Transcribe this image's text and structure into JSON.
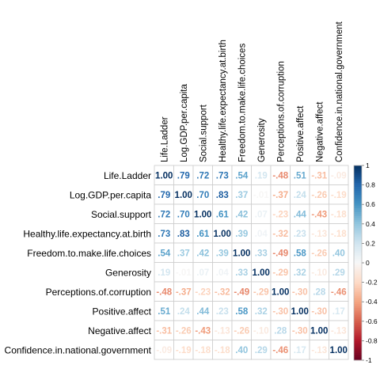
{
  "chart_data": {
    "type": "heatmap",
    "variables": [
      "Life.Ladder",
      "Log.GDP.per.capita",
      "Social.support",
      "Healthy.life.expectancy.at.birth",
      "Freedom.to.make.life.choices",
      "Generosity",
      "Perceptions.of.corruption",
      "Positive.affect",
      "Negative.affect",
      "Confidence.in.national.government"
    ],
    "matrix": [
      [
        1.0,
        0.79,
        0.72,
        0.73,
        0.54,
        0.19,
        -0.48,
        0.51,
        -0.31,
        -0.09
      ],
      [
        0.79,
        1.0,
        0.7,
        0.83,
        0.37,
        -0.01,
        -0.37,
        0.24,
        -0.26,
        -0.19
      ],
      [
        0.72,
        0.7,
        1.0,
        0.61,
        0.42,
        0.07,
        -0.23,
        0.44,
        -0.43,
        -0.18
      ],
      [
        0.73,
        0.83,
        0.61,
        1.0,
        0.39,
        0.04,
        -0.32,
        0.23,
        -0.13,
        -0.18
      ],
      [
        0.54,
        0.37,
        0.42,
        0.39,
        1.0,
        0.33,
        -0.49,
        0.58,
        -0.26,
        0.4
      ],
      [
        0.19,
        -0.01,
        0.07,
        0.04,
        0.33,
        1.0,
        -0.29,
        0.32,
        -0.1,
        0.29
      ],
      [
        -0.48,
        -0.37,
        -0.23,
        -0.32,
        -0.49,
        -0.29,
        1.0,
        -0.3,
        0.28,
        -0.46
      ],
      [
        0.51,
        0.24,
        0.44,
        0.23,
        0.58,
        0.32,
        -0.3,
        1.0,
        -0.3,
        0.17
      ],
      [
        -0.31,
        -0.26,
        -0.43,
        -0.13,
        -0.26,
        -0.1,
        0.28,
        -0.3,
        1.0,
        -0.13
      ],
      [
        -0.09,
        -0.19,
        -0.18,
        -0.18,
        0.4,
        0.29,
        -0.46,
        0.17,
        -0.13,
        1.0
      ]
    ],
    "colorbar": {
      "range": [
        -1,
        1
      ],
      "ticks": [
        "1",
        "0.8",
        "0.6",
        "0.4",
        "0.2",
        "0",
        "-0.2",
        "-0.4",
        "-0.6",
        "-0.8",
        "-1"
      ]
    }
  }
}
